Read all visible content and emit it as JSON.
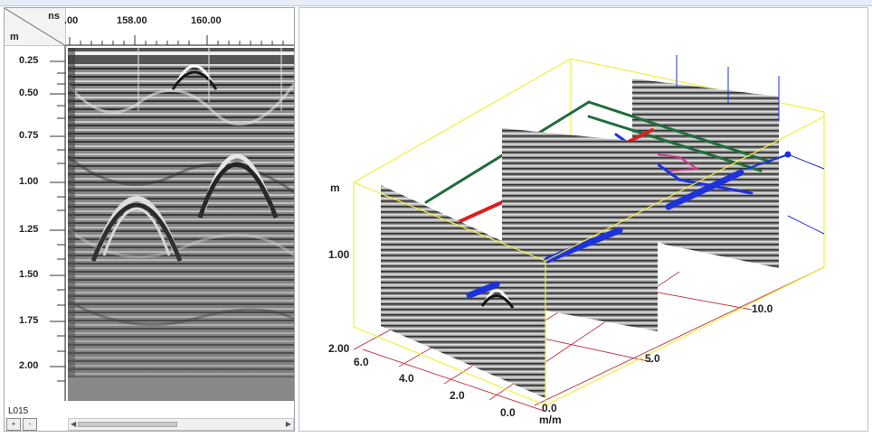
{
  "radargram_view": {
    "x_unit": "ns",
    "y_unit": "m",
    "x_ticks": [
      ".00",
      "158.00",
      "160.00"
    ],
    "y_ticks": [
      "0.25",
      "0.50",
      "0.75",
      "1.00",
      "1.25",
      "1.50",
      "1.75",
      "2.00"
    ],
    "line_id": "L015",
    "nav_prev": "+",
    "nav_next": "-"
  },
  "view_3d": {
    "depth_unit": "m",
    "depth_ticks": [
      "1.00",
      "2.00"
    ],
    "y_axis_ticks": [
      "6.0",
      "4.0",
      "2.0",
      "0.0"
    ],
    "x_axis_ticks": [
      "0.0",
      "5.0",
      "10.0"
    ],
    "x_axis_unit": "m/m",
    "colors": {
      "bounding_box": "#f0f03c",
      "grid_lines": "#c04050",
      "pipe_green": "#1e6e3c",
      "pipe_red": "#dc1e1e",
      "pipe_blue": "#1e32dc",
      "pipe_magenta": "#c83c8c"
    }
  }
}
